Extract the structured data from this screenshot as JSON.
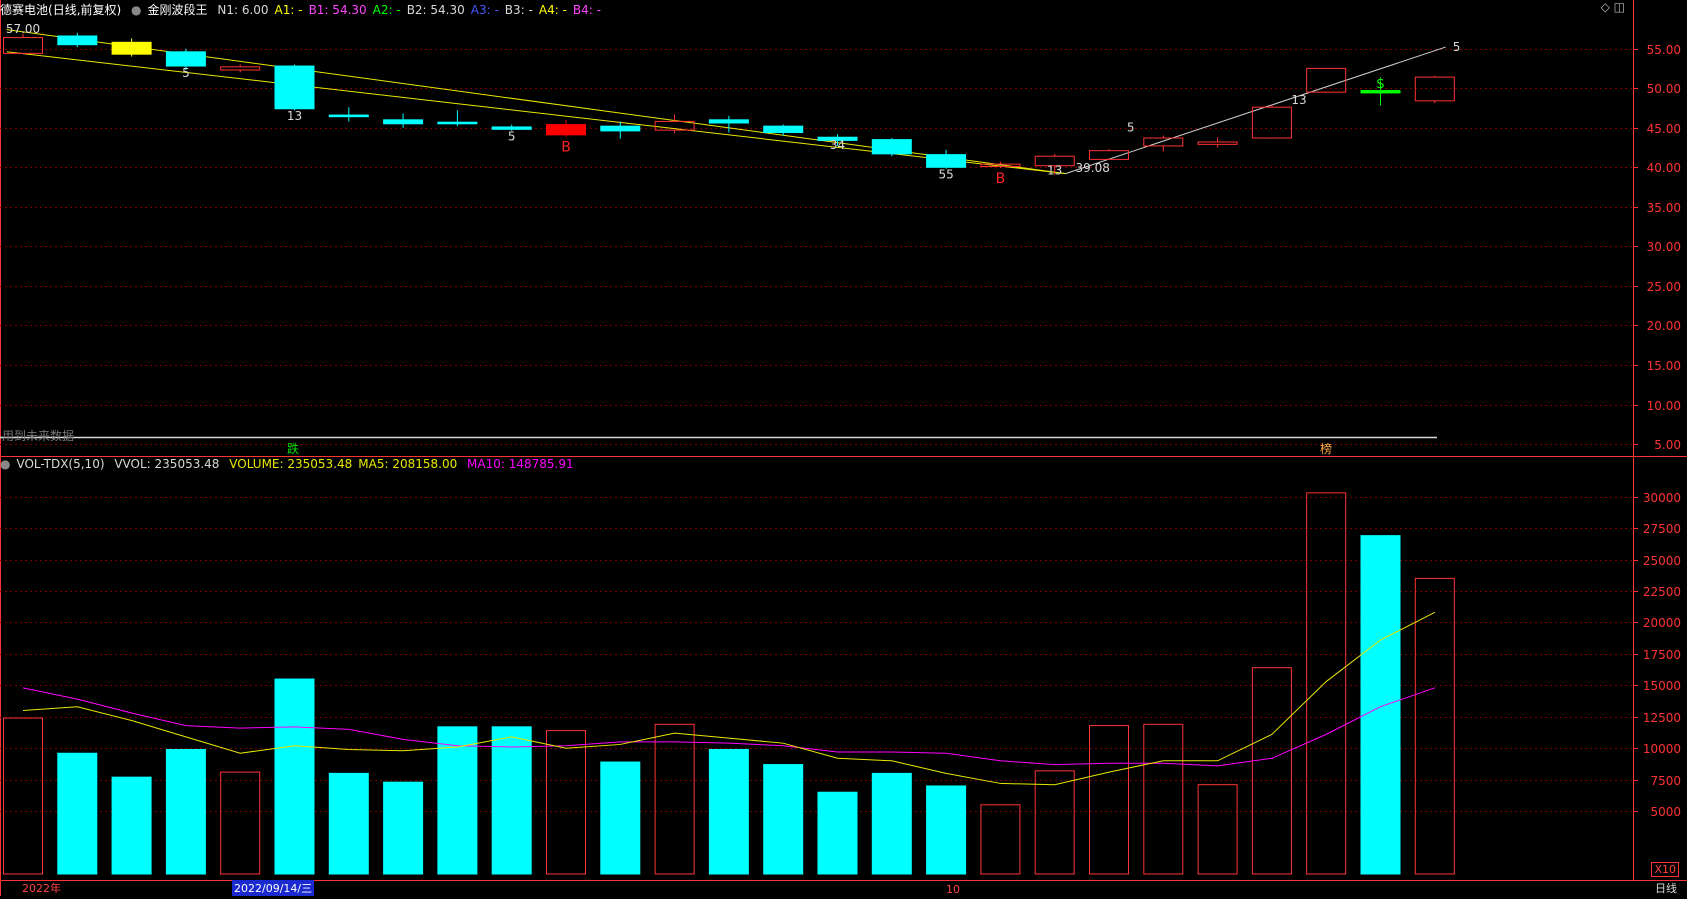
{
  "price_header": {
    "stock": "德赛电池",
    "mode": "(日线,前复权)",
    "indicator": "金刚波段王",
    "params": [
      {
        "label": "N1: 6.00",
        "color": "#d8d8d8"
      },
      {
        "label": "A1: -",
        "color": "#ffff00"
      },
      {
        "label": "B1: 54.30",
        "color": "#ff44ff"
      },
      {
        "label": "A2: -",
        "color": "#00ff00"
      },
      {
        "label": "B2: 54.30",
        "color": "#d8d8d8"
      },
      {
        "label": "A3: -",
        "color": "#4455ff"
      },
      {
        "label": "B3: -",
        "color": "#d8d8d8"
      },
      {
        "label": "A4: -",
        "color": "#ffff00"
      },
      {
        "label": "B4: -",
        "color": "#ff44ff"
      }
    ]
  },
  "volume_header": {
    "name": "VOL-TDX(5,10)",
    "vvol": "VVOL: 235053.48",
    "volume": "VOLUME: 235053.48",
    "ma5": "MA5: 208158.00",
    "ma10": "MA10: 148785.91"
  },
  "window_controls": {
    "diamond": "◇",
    "square": "◫"
  },
  "notice": "用到未来数据",
  "signal_down": "跌",
  "signal_top": "榜",
  "unit": "X10",
  "period": "日线",
  "date_labels": {
    "year": "2022年",
    "cursor": "2022/09/14/三",
    "month": "10"
  },
  "colors": {
    "up": "#ff3232",
    "down": "#00ffff",
    "axis": "#ff3232",
    "ma5": "#e8e800",
    "ma10": "#ff00ff",
    "trend": "#e8e800",
    "trend2": "#d0d0d0"
  },
  "chart_data": [
    {
      "type": "candlestick",
      "title": "德赛电池 (日线,前复权)",
      "y_ticks": [
        5,
        10,
        15,
        20,
        25,
        30,
        35,
        40,
        45,
        50,
        55
      ],
      "ylim": [
        3.5,
        59
      ],
      "candles": [
        {
          "o": 54.4,
          "c": 56.4,
          "h": 56.9,
          "l": 54.4
        },
        {
          "o": 56.6,
          "c": 55.5,
          "h": 57.0,
          "l": 55.2
        },
        {
          "o": 55.8,
          "c": 54.3,
          "h": 56.3,
          "l": 54.0
        },
        {
          "o": 54.6,
          "c": 52.8,
          "h": 55.0,
          "l": 52.3
        },
        {
          "o": 52.3,
          "c": 52.7,
          "h": 53.0,
          "l": 52.0
        },
        {
          "o": 52.8,
          "c": 47.4,
          "h": 53.0,
          "l": 47.2
        },
        {
          "o": 46.6,
          "c": 46.4,
          "h": 47.6,
          "l": 45.8
        },
        {
          "o": 46.0,
          "c": 45.5,
          "h": 46.8,
          "l": 45.0
        },
        {
          "o": 45.7,
          "c": 45.5,
          "h": 47.2,
          "l": 45.2
        },
        {
          "o": 45.1,
          "c": 44.8,
          "h": 45.4,
          "l": 44.6
        },
        {
          "o": 44.1,
          "c": 45.4,
          "h": 46.0,
          "l": 43.9
        },
        {
          "o": 45.2,
          "c": 44.6,
          "h": 45.8,
          "l": 43.6
        },
        {
          "o": 44.7,
          "c": 45.8,
          "h": 46.7,
          "l": 44.3
        },
        {
          "o": 46.0,
          "c": 45.6,
          "h": 46.5,
          "l": 44.4
        },
        {
          "o": 45.2,
          "c": 44.4,
          "h": 45.4,
          "l": 44.0
        },
        {
          "o": 43.8,
          "c": 43.4,
          "h": 44.2,
          "l": 42.7
        },
        {
          "o": 43.5,
          "c": 41.7,
          "h": 43.7,
          "l": 41.4
        },
        {
          "o": 41.6,
          "c": 40.0,
          "h": 42.2,
          "l": 39.8
        },
        {
          "o": 40.1,
          "c": 40.4,
          "h": 40.7,
          "l": 39.9
        },
        {
          "o": 40.2,
          "c": 41.4,
          "h": 41.7,
          "l": 39.1
        },
        {
          "o": 41.0,
          "c": 42.1,
          "h": 42.3,
          "l": 40.9
        },
        {
          "o": 42.7,
          "c": 43.7,
          "h": 44.0,
          "l": 42.0
        },
        {
          "o": 42.9,
          "c": 43.2,
          "h": 43.8,
          "l": 42.5
        },
        {
          "o": 43.7,
          "c": 47.6,
          "h": 47.9,
          "l": 43.6
        },
        {
          "o": 49.5,
          "c": 52.5,
          "h": 52.5,
          "l": 49.4
        },
        {
          "o": 49.7,
          "c": 49.4,
          "h": 50.8,
          "l": 47.8
        },
        {
          "o": 48.4,
          "c": 51.4,
          "h": 51.6,
          "l": 48.1
        }
      ],
      "highlighted": [
        {
          "index": 2,
          "color": "#ffff00"
        },
        {
          "index": 10,
          "color": "#ff0000"
        },
        {
          "index": 25,
          "color": "#00ff00"
        }
      ],
      "annotations": [
        {
          "i": 0,
          "v": 57.0,
          "text": "57.00",
          "color": "#d8d8d8"
        },
        {
          "i": 3,
          "v": 51.4,
          "text": "5",
          "color": "#d8d8d8"
        },
        {
          "i": 5,
          "v": 46.0,
          "text": "13",
          "color": "#d8d8d8"
        },
        {
          "i": 9,
          "v": 43.4,
          "text": "5",
          "color": "#d8d8d8"
        },
        {
          "i": 10,
          "v": 42.0,
          "text": "B",
          "color": "#ff2222"
        },
        {
          "i": 15,
          "v": 42.3,
          "text": "34",
          "color": "#d8d8d8"
        },
        {
          "i": 17,
          "v": 38.6,
          "text": "55",
          "color": "#d8d8d8"
        },
        {
          "i": 18,
          "v": 38.0,
          "text": "B",
          "color": "#ff2222"
        },
        {
          "i": 19,
          "v": 39.1,
          "text": "13",
          "color": "#d8d8d8"
        },
        {
          "i": 19.7,
          "v": 39.4,
          "text": "39.08",
          "color": "#d8d8d8"
        },
        {
          "i": 20.4,
          "v": 44.5,
          "text": "5",
          "color": "#d8d8d8"
        },
        {
          "i": 23.5,
          "v": 48.0,
          "text": "13",
          "color": "#d8d8d8"
        },
        {
          "i": 25,
          "v": 50.0,
          "text": "$",
          "color": "#00ff00"
        },
        {
          "i": 26.4,
          "v": 54.7,
          "text": "5",
          "color": "#d8d8d8"
        }
      ],
      "trend_lines": [
        {
          "from": [
            -0.3,
            57.4
          ],
          "to": [
            19.2,
            39.2
          ],
          "color": "#e8e800"
        },
        {
          "from": [
            -0.3,
            54.6
          ],
          "to": [
            19.2,
            39.2
          ],
          "color": "#e8e800"
        },
        {
          "from": [
            19.2,
            39.2
          ],
          "to": [
            26.2,
            55.2
          ],
          "color": "#d0d0d0"
        }
      ]
    },
    {
      "type": "bar",
      "title": "VOL-TDX(5,10)",
      "unit": "X10",
      "y_ticks": [
        5000,
        7500,
        10000,
        12500,
        15000,
        17500,
        20000,
        22500,
        25000,
        27500,
        30000
      ],
      "ylim": [
        0,
        31800
      ],
      "values": [
        12400,
        9600,
        7700,
        9900,
        8100,
        15500,
        8000,
        7300,
        11700,
        11700,
        11400,
        8900,
        11900,
        9900,
        8700,
        6500,
        8000,
        7000,
        5500,
        8200,
        11800,
        11900,
        7100,
        16400,
        30300,
        26900,
        23500
      ],
      "up": [
        true,
        false,
        false,
        false,
        true,
        false,
        false,
        false,
        false,
        false,
        true,
        false,
        true,
        false,
        false,
        false,
        false,
        false,
        true,
        true,
        true,
        true,
        true,
        true,
        true,
        false,
        true
      ],
      "ma5": [
        13000,
        13300,
        12200,
        10900,
        9600,
        10200,
        9900,
        9800,
        10100,
        10900,
        10000,
        10300,
        11200,
        10800,
        10400,
        9200,
        9000,
        8000,
        7200,
        7100,
        8100,
        9000,
        9000,
        11100,
        15300,
        18600,
        20800
      ],
      "ma10": [
        14800,
        13900,
        12800,
        11800,
        11600,
        11700,
        11500,
        10700,
        10200,
        10100,
        10200,
        10500,
        10500,
        10400,
        10200,
        9700,
        9700,
        9600,
        9000,
        8700,
        8800,
        8800,
        8600,
        9200,
        11100,
        13300,
        14800
      ]
    }
  ]
}
